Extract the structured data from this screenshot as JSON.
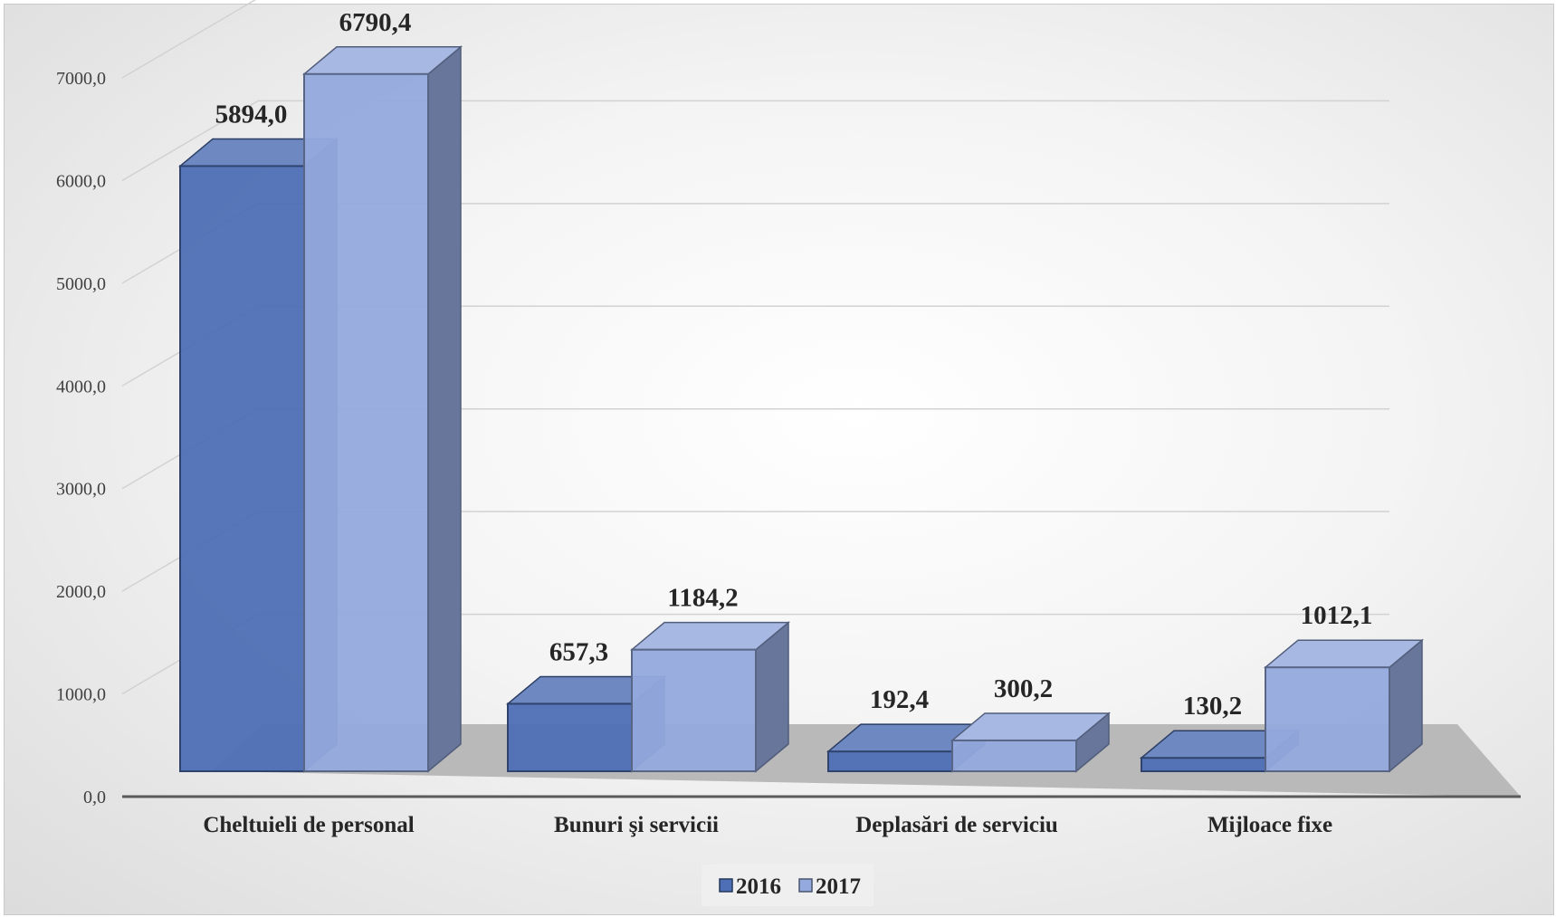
{
  "chart_data": {
    "type": "bar",
    "categories": [
      "Cheltuieli de personal",
      "Bunuri şi servicii",
      "Deplasări de serviciu",
      "Mijloace fixe"
    ],
    "series": [
      {
        "name": "2016",
        "values": [
          5894.0,
          657.3,
          192.4,
          130.2
        ],
        "labels": [
          "5894,0",
          "657,3",
          "192,4",
          "130,2"
        ],
        "color": "#4e6fb5"
      },
      {
        "name": "2017",
        "values": [
          6790.4,
          1184.2,
          300.2,
          1012.1
        ],
        "labels": [
          "6790,4",
          "1184,2",
          "300,2",
          "1012,1"
        ],
        "color": "#94a9dd"
      }
    ],
    "ylim": [
      0,
      7000
    ],
    "yticks": [
      "0,0",
      "1000,0",
      "2000,0",
      "3000,0",
      "4000,0",
      "5000,0",
      "6000,0",
      "7000,0"
    ],
    "title": "",
    "xlabel": "",
    "ylabel": "",
    "grid": true,
    "legend_position": "bottom",
    "style": "3d-clustered-column",
    "floor_color": "#b9b9b9"
  }
}
